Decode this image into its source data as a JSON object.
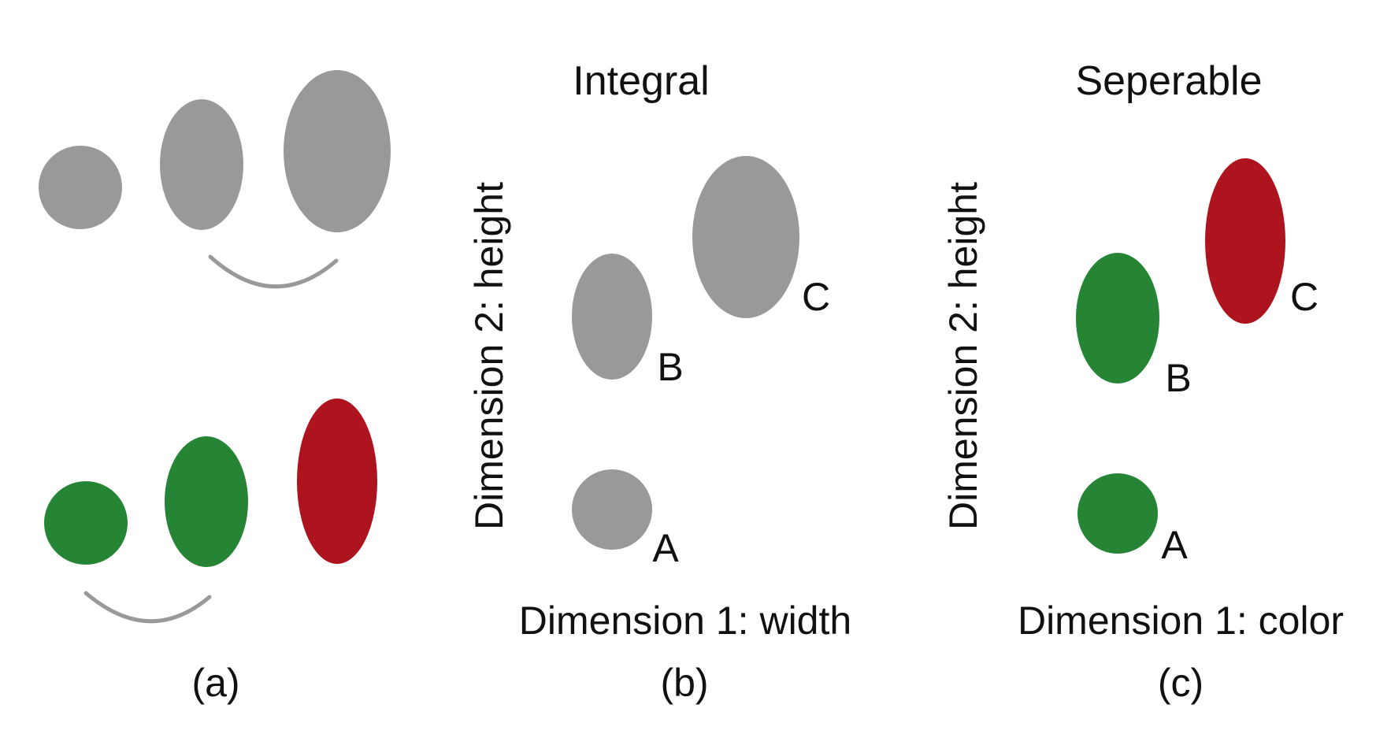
{
  "colors": {
    "gray": "#999999",
    "green": "#258535",
    "red": "#ad141d",
    "arc": "#999999",
    "text": "#111111"
  },
  "panel_a": {
    "caption": "(a)"
  },
  "panel_b": {
    "title": "Integral",
    "x_axis_label": "Dimension 1: width",
    "y_axis_label": "Dimension 2: height",
    "caption": "(b)",
    "point_labels": {
      "a": "A",
      "b": "B",
      "c": "C"
    }
  },
  "panel_c": {
    "title": "Seperable",
    "x_axis_label": "Dimension 1: color",
    "y_axis_label": "Dimension 2: height",
    "caption": "(c)",
    "point_labels": {
      "a": "A",
      "b": "B",
      "c": "C"
    }
  }
}
